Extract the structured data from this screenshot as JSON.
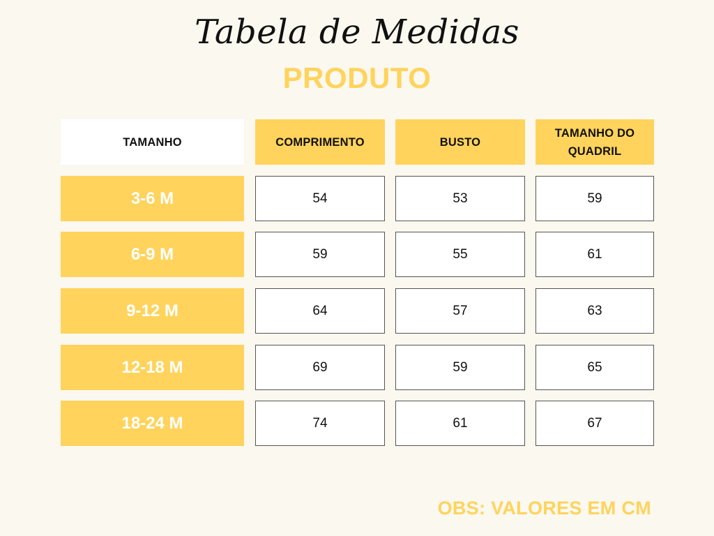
{
  "title": "Tabela de Medidas",
  "subtitle": "PRODUTO",
  "table": {
    "headers": [
      "TAMANHO",
      "COMPRIMENTO",
      "BUSTO",
      "TAMANHO DO QUADRIL"
    ],
    "rows": [
      {
        "size": "3-6 M",
        "comprimento": "54",
        "busto": "53",
        "quadril": "59"
      },
      {
        "size": "6-9 M",
        "comprimento": "59",
        "busto": "55",
        "quadril": "61"
      },
      {
        "size": "9-12 M",
        "comprimento": "64",
        "busto": "57",
        "quadril": "63"
      },
      {
        "size": "12-18 M",
        "comprimento": "69",
        "busto": "59",
        "quadril": "65"
      },
      {
        "size": "18-24 M",
        "comprimento": "74",
        "busto": "61",
        "quadril": "67"
      }
    ]
  },
  "note": "OBS: VALORES EM CM",
  "colors": {
    "background": "#faf8ef",
    "accent": "#ffd35c",
    "text": "#111111",
    "cell_border": "#555555"
  }
}
